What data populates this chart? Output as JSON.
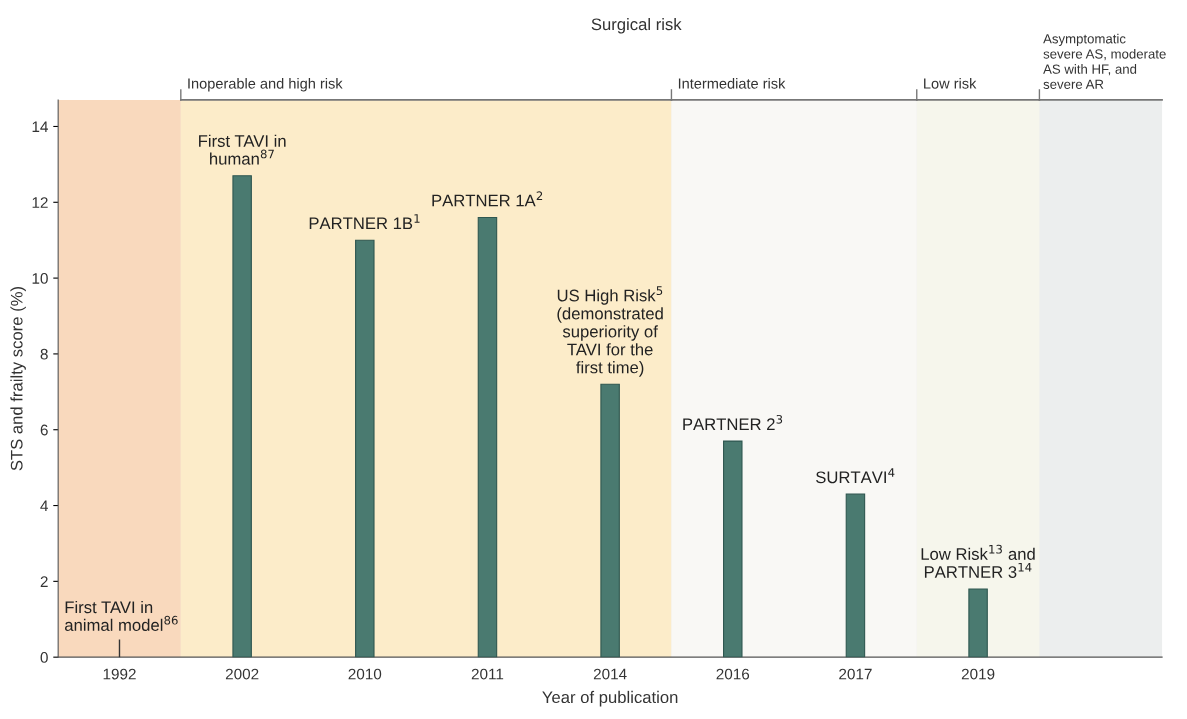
{
  "chart_data": {
    "type": "bar",
    "title": "Surgical risk",
    "xlabel": "Year of publication",
    "ylabel": "STS and frailty score (%)",
    "categories": [
      "1992",
      "2002",
      "2010",
      "2011",
      "2014",
      "2016",
      "2017",
      "2019",
      null
    ],
    "values": [
      null,
      12.7,
      11.0,
      11.6,
      7.2,
      5.7,
      4.3,
      1.8,
      null
    ],
    "color": "#4a7a70",
    "ylim": [
      0,
      14.7
    ],
    "yticks": [
      0,
      2,
      4,
      6,
      8,
      10,
      12,
      14
    ],
    "grid": false,
    "bands": [
      {
        "axis": "x",
        "from": "1992",
        "to": "1992",
        "color": "#f9d9bd"
      },
      {
        "axis": "x",
        "from": "2002",
        "to": "2014",
        "label": "Inoperable and high risk",
        "color": "#fcecc9"
      },
      {
        "axis": "x",
        "from": "2016",
        "to": "2017",
        "label": "Intermediate risk",
        "color": "#f9f8f5"
      },
      {
        "axis": "x",
        "from": "2019",
        "to": "2019",
        "label": "Low risk",
        "color": "#f6f6ec"
      }
    ],
    "annotations": [
      "Asymptomatic\nsevere AS, moderate\nAS with HF, and\nsevere AR",
      "First TAVI in\nanimal model$^{86}$",
      {
        "text": "First TAVI in\nhuman$^{87}$",
        "x": "2002",
        "y": 12.7
      },
      {
        "text": "PARTNER 1B$^{1}$",
        "x": "2010",
        "y": 11.0
      },
      {
        "text": "PARTNER 1A$^{2}$",
        "x": "2011",
        "y": 11.6
      },
      {
        "text": "US High Risk$^{5}$\n(demonstrated\nsuperiority of\nTAVI for the\nfirst time)",
        "x": "2014",
        "y": 7.2
      },
      {
        "text": "PARTNER 2$^{3}$",
        "x": "2016",
        "y": 5.7
      },
      {
        "text": "SURTAVI$^{4}$",
        "x": "2017",
        "y": 4.3
      },
      {
        "text": "Low Risk$^{13}$ and\nPARTNER 3$^{14}$",
        "x": "2019",
        "y": 1.8
      }
    ]
  }
}
